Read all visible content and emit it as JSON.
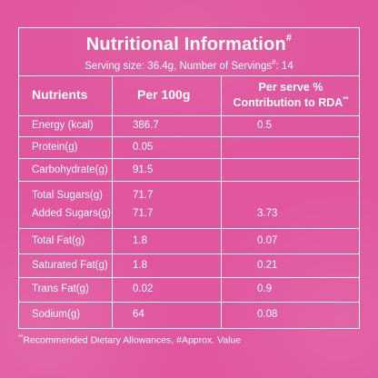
{
  "title": "Nutritional Information",
  "title_mark": "#",
  "serving": {
    "text": "Serving size: 36.4g, Number of Servings",
    "mark": "#",
    "suffix": ": 14"
  },
  "headers": {
    "nutrients": "Nutrients",
    "per100": "Per 100g",
    "rda_line1": "Per serve %",
    "rda_line2": "Contribution to RDA",
    "rda_mark": "**"
  },
  "rows": [
    {
      "name": "Energy (kcal)",
      "per100": "386.7",
      "rda": "0.5"
    },
    {
      "name": "Protein(g)",
      "per100": "0.05",
      "rda": ""
    },
    {
      "name": "Carbohydrate(g)",
      "per100": "91.5",
      "rda": ""
    },
    {
      "name": "Total Sugars(g)",
      "per100": "71.7",
      "rda": ""
    },
    {
      "name": "Added Sugars(g)",
      "per100": "71.7",
      "rda": "3.73"
    },
    {
      "name": "Total Fat(g)",
      "per100": "1.8",
      "rda": "0.07"
    },
    {
      "name": "Saturated Fat(g)",
      "per100": "1.8",
      "rda": "0.21"
    },
    {
      "name": "Trans Fat(g)",
      "per100": "0.02",
      "rda": "0.9"
    },
    {
      "name": "Sodium(g)",
      "per100": "64",
      "rda": "0.08"
    }
  ],
  "footnote": {
    "mark": "**",
    "text": "Recommended Dietary Allowances, #Approx. Value"
  }
}
